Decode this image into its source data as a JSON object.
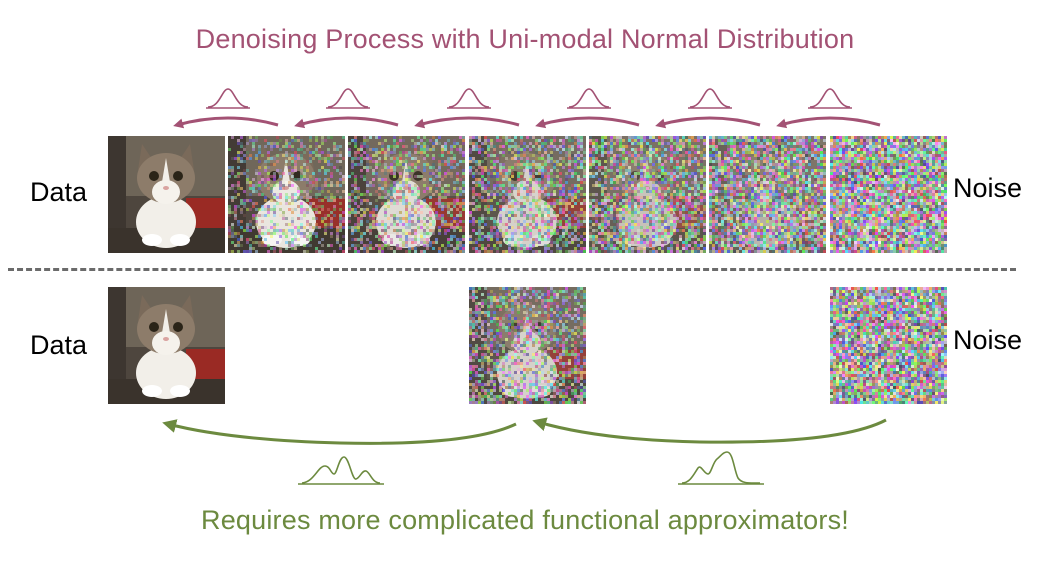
{
  "colors": {
    "top_accent": "#a35274",
    "bottom_accent": "#6c8a3f",
    "divider": "#6b6b6b"
  },
  "top_section": {
    "title": "Denoising Process with Uni-modal Normal Distribution",
    "left_label": "Data",
    "right_label": "Noise",
    "noise_levels": [
      0.0,
      0.3,
      0.45,
      0.55,
      0.68,
      0.8,
      1.0
    ],
    "step_arrows": 6,
    "step_distribution": "uni-modal"
  },
  "bottom_section": {
    "title": "Requires more complicated functional approximators!",
    "left_label": "Data",
    "right_label": "Noise",
    "noise_levels": [
      0.0,
      0.55,
      1.0
    ],
    "step_arrows": 2,
    "step_distribution": "multi-modal"
  },
  "icons": [
    "cat-image",
    "noise-image",
    "arrow-left-icon",
    "gaussian-curve-icon",
    "multimodal-curve-icon"
  ]
}
